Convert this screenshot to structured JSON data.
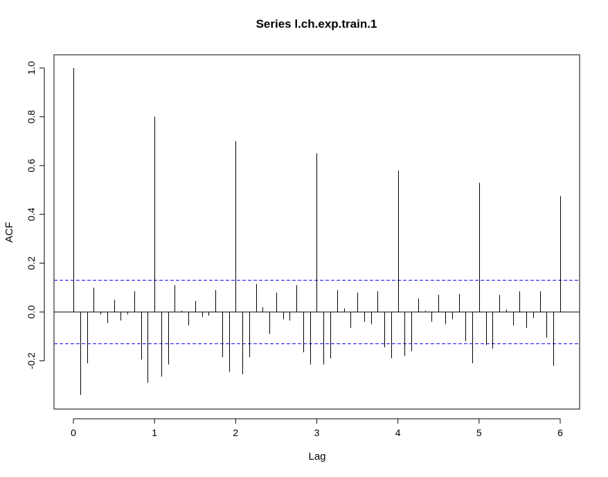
{
  "chart_data": {
    "type": "acf",
    "title": "Series  l.ch.exp.train.1",
    "xlabel": "Lag",
    "ylabel": "ACF",
    "xlim": [
      0,
      6
    ],
    "ylim": [
      -0.4,
      1.0
    ],
    "x_ticks": [
      "0",
      "1",
      "2",
      "3",
      "4",
      "5",
      "6"
    ],
    "y_ticks": [
      "-0.2",
      "0.0",
      "0.2",
      "0.4",
      "0.6",
      "0.8",
      "1.0"
    ],
    "confidence_bound": 0.13,
    "zero_line": true,
    "lag_step": 0.08333333,
    "values": [
      1.0,
      -0.34,
      -0.21,
      0.1,
      -0.01,
      -0.045,
      0.05,
      -0.035,
      -0.01,
      0.085,
      -0.195,
      -0.29,
      0.8,
      -0.265,
      -0.215,
      0.11,
      0.005,
      -0.055,
      0.045,
      -0.02,
      -0.015,
      0.09,
      -0.185,
      -0.245,
      0.7,
      -0.255,
      -0.185,
      0.115,
      0.02,
      -0.09,
      0.08,
      -0.03,
      -0.035,
      0.11,
      -0.165,
      -0.215,
      0.65,
      -0.215,
      -0.19,
      0.09,
      0.015,
      -0.065,
      0.08,
      -0.04,
      -0.05,
      0.085,
      -0.145,
      -0.19,
      0.58,
      -0.18,
      -0.16,
      0.055,
      0.005,
      -0.04,
      0.07,
      -0.05,
      -0.03,
      0.075,
      -0.12,
      -0.21,
      0.53,
      -0.135,
      -0.15,
      0.07,
      0.01,
      -0.055,
      0.085,
      -0.065,
      -0.025,
      0.085,
      -0.105,
      -0.22,
      0.475
    ],
    "colors": {
      "spike": "#000000",
      "confidence": "#0000ee",
      "zero": "#000000"
    }
  }
}
